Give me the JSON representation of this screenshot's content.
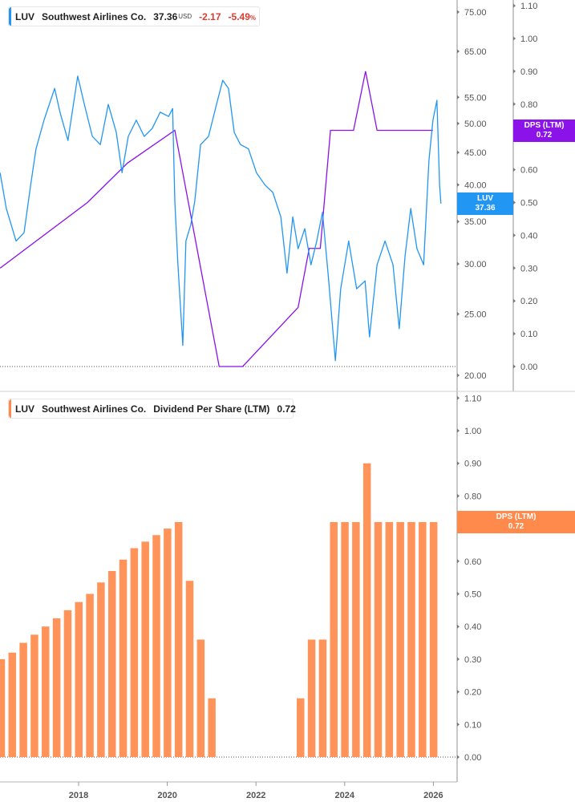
{
  "top_legend": {
    "ticker": "LUV",
    "company": "Southwest Airlines Co.",
    "price": "37.36",
    "currency": "USD",
    "change": "-2.17",
    "change_pct": "-5.49",
    "pct_sign": "%"
  },
  "bottom_legend": {
    "ticker": "LUV",
    "company": "Southwest Airlines Co.",
    "metric": "Dividend Per Share (LTM)",
    "value": "0.72"
  },
  "badges": {
    "luv": {
      "label": "LUV",
      "value": "37.36"
    },
    "dps_top": {
      "label": "DPS (LTM)",
      "value": "0.72"
    },
    "dps_bottom": {
      "label": "DPS (LTM)",
      "value": "0.72"
    }
  },
  "colors": {
    "price": "#2196f3",
    "dps_line": "#8b12e8",
    "bars": "#ff935a",
    "badge_orange": "#ff8a4c"
  },
  "chart_data": [
    {
      "type": "line",
      "scale": "log",
      "xlim": [
        2016.2,
        2026.5
      ],
      "ylim": [
        20,
        75
      ],
      "xticks": [
        "2018",
        "2020",
        "2022",
        "2024",
        "2026"
      ],
      "yticks": [
        "75.00",
        "65.00",
        "55.00",
        "50.00",
        "45.00",
        "40.00",
        "35.00",
        "30.00",
        "25.00",
        "20.00"
      ],
      "y2ticks": [
        "1.10",
        "1.00",
        "0.90",
        "0.80",
        "0.70",
        "0.60",
        "0.50",
        "0.40",
        "0.30",
        "0.20",
        "0.10",
        "0.00"
      ],
      "y2lim": [
        0,
        1.1
      ],
      "series": [
        {
          "name": "LUV",
          "axis": "left",
          "points": [
            [
              2016.23,
              41.8
            ],
            [
              2016.37,
              36.7
            ],
            [
              2016.59,
              32.6
            ],
            [
              2016.77,
              33.6
            ],
            [
              2016.92,
              40.0
            ],
            [
              2017.04,
              45.6
            ],
            [
              2017.22,
              50.6
            ],
            [
              2017.46,
              56.8
            ],
            [
              2017.58,
              52.1
            ],
            [
              2017.76,
              47.0
            ],
            [
              2017.98,
              59.4
            ],
            [
              2018.13,
              53.6
            ],
            [
              2018.31,
              47.7
            ],
            [
              2018.49,
              46.3
            ],
            [
              2018.67,
              53.6
            ],
            [
              2018.85,
              48.4
            ],
            [
              2018.98,
              41.8
            ],
            [
              2019.12,
              47.7
            ],
            [
              2019.3,
              50.6
            ],
            [
              2019.48,
              47.7
            ],
            [
              2019.66,
              49.1
            ],
            [
              2019.84,
              52.1
            ],
            [
              2020.03,
              51.3
            ],
            [
              2020.12,
              52.8
            ],
            [
              2020.17,
              37.7
            ],
            [
              2020.24,
              29.9
            ],
            [
              2020.35,
              22.3
            ],
            [
              2020.42,
              32.6
            ],
            [
              2020.53,
              34.6
            ],
            [
              2020.62,
              37.7
            ],
            [
              2020.75,
              46.3
            ],
            [
              2020.93,
              47.7
            ],
            [
              2021.11,
              53.6
            ],
            [
              2021.25,
              58.5
            ],
            [
              2021.38,
              56.8
            ],
            [
              2021.51,
              48.4
            ],
            [
              2021.65,
              46.3
            ],
            [
              2021.83,
              45.6
            ],
            [
              2022.01,
              41.8
            ],
            [
              2022.2,
              40.0
            ],
            [
              2022.38,
              38.9
            ],
            [
              2022.56,
              35.6
            ],
            [
              2022.7,
              29.0
            ],
            [
              2022.83,
              35.6
            ],
            [
              2022.95,
              31.7
            ],
            [
              2023.1,
              34.1
            ],
            [
              2023.24,
              29.9
            ],
            [
              2023.37,
              32.6
            ],
            [
              2023.5,
              36.2
            ],
            [
              2023.64,
              28.2
            ],
            [
              2023.79,
              21.1
            ],
            [
              2023.91,
              27.4
            ],
            [
              2024.09,
              32.6
            ],
            [
              2024.27,
              27.4
            ],
            [
              2024.46,
              28.2
            ],
            [
              2024.56,
              23.0
            ],
            [
              2024.73,
              29.9
            ],
            [
              2024.91,
              32.6
            ],
            [
              2025.09,
              29.9
            ],
            [
              2025.23,
              23.7
            ],
            [
              2025.36,
              30.8
            ],
            [
              2025.49,
              36.7
            ],
            [
              2025.63,
              31.7
            ],
            [
              2025.78,
              29.9
            ],
            [
              2025.9,
              43.7
            ],
            [
              2025.99,
              50.6
            ],
            [
              2026.08,
              54.4
            ],
            [
              2026.14,
              40.0
            ],
            [
              2026.17,
              37.36
            ]
          ]
        },
        {
          "name": "DPS (LTM)",
          "axis": "right",
          "points": [
            [
              2016.23,
              0.3
            ],
            [
              2018.2,
              0.5
            ],
            [
              2019.1,
              0.62
            ],
            [
              2020.17,
              0.72
            ],
            [
              2021.17,
              0
            ],
            [
              2021.7,
              0
            ],
            [
              2022.95,
              0.18
            ],
            [
              2023.2,
              0.36
            ],
            [
              2023.45,
              0.36
            ],
            [
              2023.68,
              0.72
            ],
            [
              2024.2,
              0.72
            ],
            [
              2024.47,
              0.9
            ],
            [
              2024.73,
              0.72
            ],
            [
              2025.99,
              0.72
            ]
          ]
        }
      ]
    },
    {
      "type": "bar",
      "xlim": [
        2016.2,
        2026.5
      ],
      "ylim": [
        0,
        1.1
      ],
      "yticks": [
        "1.10",
        "1.00",
        "0.90",
        "0.80",
        "0.70",
        "0.60",
        "0.50",
        "0.40",
        "0.30",
        "0.20",
        "0.10",
        "0.00"
      ],
      "xticks": [
        "2018",
        "2020",
        "2022",
        "2024",
        "2026"
      ],
      "series": [
        {
          "name": "Dividend Per Share (LTM)",
          "categories": [
            "2016Q2",
            "2016Q3",
            "2016Q4",
            "2017Q1",
            "2017Q2",
            "2017Q3",
            "2017Q4",
            "2018Q1",
            "2018Q2",
            "2018Q3",
            "2018Q4",
            "2019Q1",
            "2019Q2",
            "2019Q3",
            "2019Q4",
            "2020Q1",
            "2020Q2",
            "2020Q3",
            "2020Q4",
            "2021Q1",
            "2021Q2",
            "2021Q3",
            "2021Q4",
            "2022Q1",
            "2022Q2",
            "2022Q3",
            "2022Q4",
            "2023Q1",
            "2023Q2",
            "2023Q3",
            "2023Q4",
            "2024Q1",
            "2024Q2",
            "2024Q3",
            "2024Q4",
            "2025Q1",
            "2025Q2",
            "2025Q3",
            "2025Q4",
            "2026Q1"
          ],
          "values": [
            0.3,
            0.32,
            0.35,
            0.375,
            0.4,
            0.425,
            0.45,
            0.475,
            0.5,
            0.535,
            0.57,
            0.605,
            0.64,
            0.66,
            0.68,
            0.7,
            0.72,
            0.54,
            0.36,
            0.18,
            0,
            0,
            0,
            0,
            0,
            0,
            0,
            0.18,
            0.36,
            0.36,
            0.72,
            0.72,
            0.72,
            0.9,
            0.72,
            0.72,
            0.72,
            0.72,
            0.72,
            0.72
          ]
        }
      ]
    }
  ]
}
